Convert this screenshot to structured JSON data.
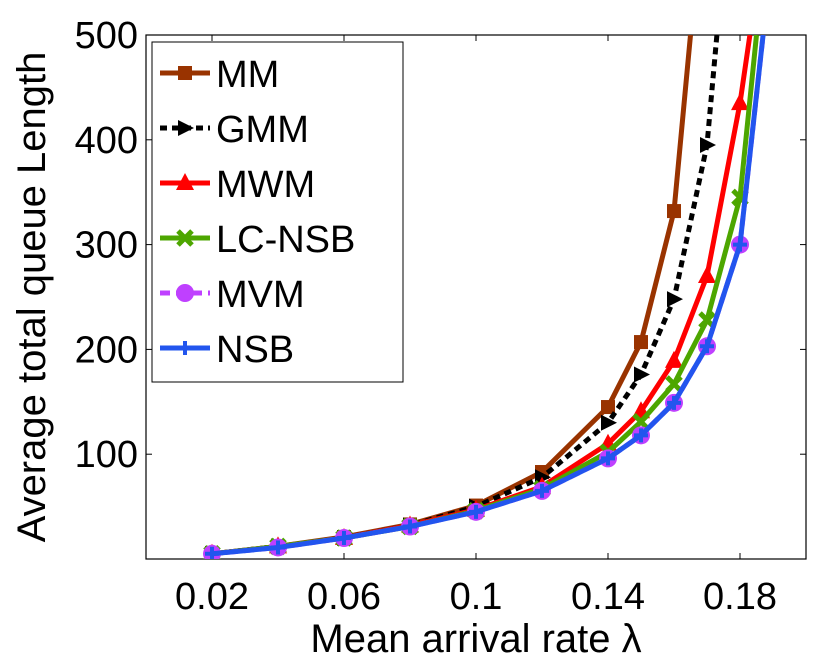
{
  "chart_data": {
    "type": "line",
    "title": "",
    "xlabel": "Mean arrival rate λ",
    "ylabel": "Average total queue Length",
    "xlim": [
      0,
      0.2
    ],
    "ylim": [
      0,
      500
    ],
    "xticks": [
      0.02,
      0.06,
      0.1,
      0.14,
      0.18
    ],
    "xtick_labels": [
      "0.02",
      "0.06",
      "0.1",
      "0.14",
      "0.18"
    ],
    "yticks": [
      100,
      200,
      300,
      400,
      500
    ],
    "ytick_labels": [
      "100",
      "200",
      "300",
      "400",
      "500"
    ],
    "legend_position": "top-left",
    "series": [
      {
        "name": "MM",
        "color": "#993300",
        "marker": "square",
        "dash": "solid",
        "x": [
          0.02,
          0.04,
          0.06,
          0.08,
          0.1,
          0.12,
          0.14,
          0.15,
          0.16,
          0.165
        ],
        "y": [
          5,
          12,
          21,
          33,
          51,
          83,
          145,
          207,
          332,
          500
        ]
      },
      {
        "name": "GMM",
        "color": "#000000",
        "marker": "triangle-right",
        "dash": "dotted",
        "x": [
          0.02,
          0.04,
          0.06,
          0.08,
          0.1,
          0.12,
          0.14,
          0.15,
          0.16,
          0.17,
          0.173
        ],
        "y": [
          5,
          12,
          20,
          32,
          50,
          78,
          130,
          176,
          248,
          395,
          500
        ]
      },
      {
        "name": "MWM",
        "color": "#ff0000",
        "marker": "triangle-up",
        "dash": "solid",
        "x": [
          0.02,
          0.04,
          0.06,
          0.08,
          0.1,
          0.12,
          0.14,
          0.15,
          0.16,
          0.17,
          0.18,
          0.183
        ],
        "y": [
          5,
          12,
          20,
          32,
          47,
          69,
          110,
          141,
          189,
          270,
          435,
          500
        ]
      },
      {
        "name": "LC-NSB",
        "color": "#4da600",
        "marker": "x",
        "dash": "solid",
        "x": [
          0.02,
          0.04,
          0.06,
          0.08,
          0.1,
          0.12,
          0.14,
          0.15,
          0.16,
          0.17,
          0.18,
          0.185
        ],
        "y": [
          5,
          12,
          20,
          31,
          46,
          67,
          102,
          131,
          167,
          228,
          345,
          500
        ]
      },
      {
        "name": "MVM",
        "color": "#bf40ff",
        "marker": "circle",
        "dash": "dashed",
        "x": [
          0.02,
          0.04,
          0.06,
          0.08,
          0.1,
          0.12,
          0.14,
          0.15,
          0.16,
          0.17,
          0.18,
          0.187
        ],
        "y": [
          5,
          11,
          20,
          31,
          45,
          65,
          96,
          118,
          149,
          203,
          300,
          500
        ]
      },
      {
        "name": "NSB",
        "color": "#2255ee",
        "marker": "plus",
        "dash": "solid",
        "x": [
          0.02,
          0.04,
          0.06,
          0.08,
          0.1,
          0.12,
          0.14,
          0.15,
          0.16,
          0.17,
          0.18,
          0.187
        ],
        "y": [
          5,
          11,
          20,
          31,
          45,
          65,
          96,
          118,
          149,
          203,
          300,
          500
        ]
      }
    ]
  }
}
